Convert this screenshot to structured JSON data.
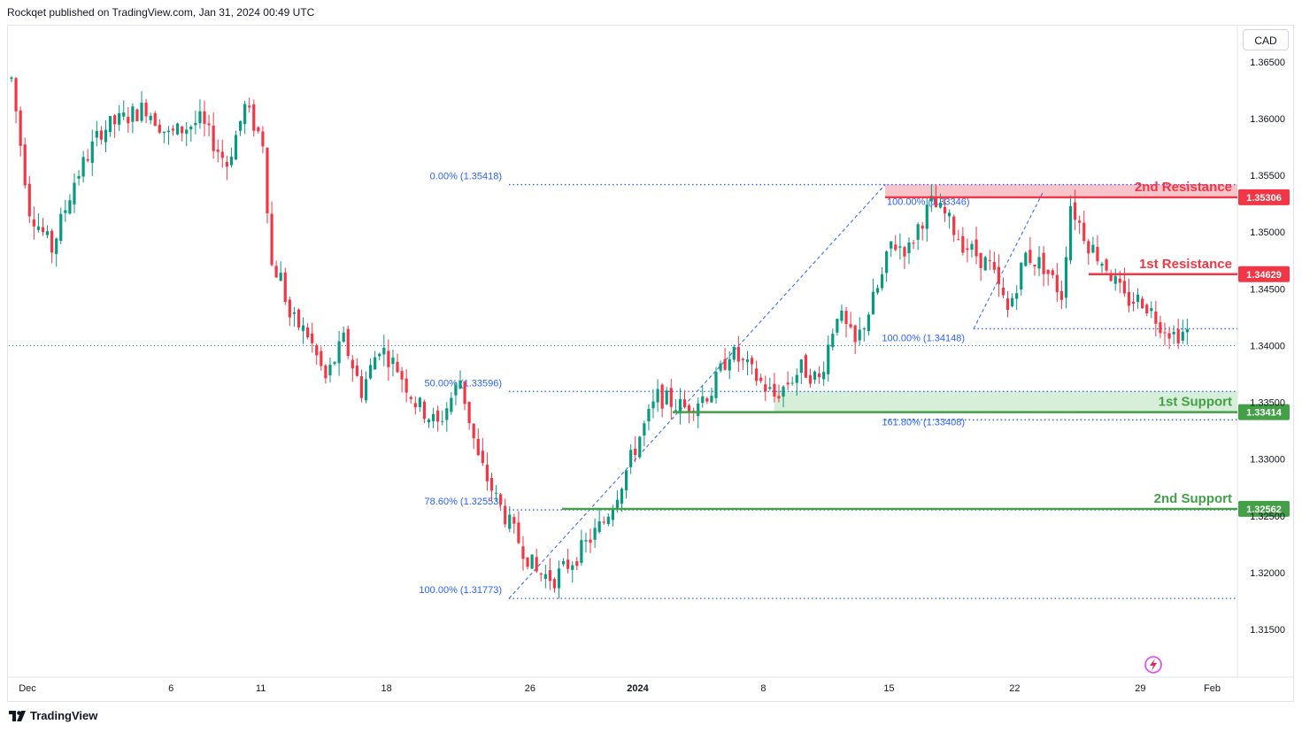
{
  "header": {
    "published": "Rockqet published on TradingView.com, Jan 31, 2024 00:49 UTC"
  },
  "currency": "CAD",
  "footer": {
    "brand": "TradingView"
  },
  "colors": {
    "up": "#089981",
    "down": "#f23645",
    "resistance": "#f23645",
    "support": "#43a047",
    "fib": "#2962ff",
    "zone_red": "#f7c5c9",
    "zone_green": "#d7eed8"
  },
  "chart_data": {
    "type": "candlestick",
    "symbol_currency": "CAD",
    "ylim": [
      1.3108,
      1.3681
    ],
    "y_ticks": [
      {
        "value": 1.365,
        "label": "1.36500"
      },
      {
        "value": 1.36,
        "label": "1.36000"
      },
      {
        "value": 1.355,
        "label": "1.35500"
      },
      {
        "value": 1.35,
        "label": "1.35000"
      },
      {
        "value": 1.345,
        "label": "1.34500"
      },
      {
        "value": 1.34,
        "label": "1.34000"
      },
      {
        "value": 1.335,
        "label": "1.33500"
      },
      {
        "value": 1.33,
        "label": "1.33000"
      },
      {
        "value": 1.325,
        "label": "1.32500"
      },
      {
        "value": 1.32,
        "label": "1.32000"
      },
      {
        "value": 1.315,
        "label": "1.31500"
      }
    ],
    "x_labels": [
      {
        "label": "Dec",
        "bar": 0,
        "bold": false
      },
      {
        "label": "6",
        "bar": 32,
        "bold": false
      },
      {
        "label": "11",
        "bar": 52,
        "bold": false
      },
      {
        "label": "18",
        "bar": 80,
        "bold": false
      },
      {
        "label": "26",
        "bar": 112,
        "bold": false
      },
      {
        "label": "2024",
        "bar": 136,
        "bold": true
      },
      {
        "label": "8",
        "bar": 164,
        "bold": false
      },
      {
        "label": "15",
        "bar": 192,
        "bold": false
      },
      {
        "label": "22",
        "bar": 220,
        "bold": false
      },
      {
        "label": "29",
        "bar": 248,
        "bold": false
      },
      {
        "label": "Feb",
        "bar": 264,
        "bold": false
      }
    ],
    "anchors": [
      [
        0,
        1.3635
      ],
      [
        4,
        1.352
      ],
      [
        9,
        1.3485
      ],
      [
        14,
        1.3545
      ],
      [
        20,
        1.359
      ],
      [
        25,
        1.36
      ],
      [
        30,
        1.361
      ],
      [
        35,
        1.3585
      ],
      [
        42,
        1.3598
      ],
      [
        48,
        1.356
      ],
      [
        52,
        1.361
      ],
      [
        56,
        1.358
      ],
      [
        58,
        1.347
      ],
      [
        60,
        1.346
      ],
      [
        62,
        1.3425
      ],
      [
        66,
        1.341
      ],
      [
        70,
        1.337
      ],
      [
        74,
        1.3405
      ],
      [
        78,
        1.336
      ],
      [
        82,
        1.34
      ],
      [
        86,
        1.338
      ],
      [
        90,
        1.335
      ],
      [
        95,
        1.333
      ],
      [
        100,
        1.337
      ],
      [
        104,
        1.33
      ],
      [
        108,
        1.3265
      ],
      [
        112,
        1.3235
      ],
      [
        117,
        1.32
      ],
      [
        121,
        1.3195
      ],
      [
        126,
        1.3215
      ],
      [
        132,
        1.3245
      ],
      [
        136,
        1.328
      ],
      [
        140,
        1.332
      ],
      [
        144,
        1.3355
      ],
      [
        150,
        1.3345
      ],
      [
        156,
        1.336
      ],
      [
        160,
        1.3395
      ],
      [
        164,
        1.338
      ],
      [
        170,
        1.3355
      ],
      [
        176,
        1.338
      ],
      [
        180,
        1.337
      ],
      [
        184,
        1.343
      ],
      [
        188,
        1.34
      ],
      [
        194,
        1.346
      ],
      [
        196,
        1.349
      ],
      [
        200,
        1.3485
      ],
      [
        202,
        1.3505
      ],
      [
        205,
        1.3525
      ],
      [
        208,
        1.3515
      ],
      [
        212,
        1.349
      ],
      [
        218,
        1.347
      ],
      [
        222,
        1.343
      ],
      [
        226,
        1.348
      ],
      [
        230,
        1.347
      ],
      [
        234,
        1.3445
      ],
      [
        236,
        1.3525
      ],
      [
        240,
        1.349
      ],
      [
        244,
        1.347
      ],
      [
        248,
        1.344
      ],
      [
        252,
        1.344
      ],
      [
        256,
        1.342
      ],
      [
        259,
        1.341
      ],
      [
        262,
        1.3412
      ]
    ],
    "current_price": 1.34,
    "annotations": [
      {
        "kind": "zone",
        "name": "2nd Resistance",
        "from": 1.3542,
        "to": 1.3531,
        "color": "red"
      },
      {
        "kind": "level",
        "name": "2nd Resistance",
        "value": 1.35306,
        "tag": "1.35306",
        "color": "red"
      },
      {
        "kind": "level",
        "name": "1st Resistance",
        "value": 1.34629,
        "tag": "1.34629",
        "color": "red"
      },
      {
        "kind": "zone",
        "name": "1st Support",
        "from": 1.336,
        "to": 1.3341,
        "color": "green"
      },
      {
        "kind": "level",
        "name": "1st Support",
        "value": 1.33414,
        "tag": "1.33414",
        "color": "green"
      },
      {
        "kind": "level",
        "name": "2nd Support",
        "value": 1.32562,
        "tag": "1.32562",
        "color": "green"
      }
    ],
    "fib_labels": [
      {
        "text": "0.00% (1.35418)",
        "value": 1.35418
      },
      {
        "text": "50.00% (1.33596)",
        "value": 1.33596
      },
      {
        "text": "78.60% (1.32553)",
        "value": 1.32553
      },
      {
        "text": "100.00% (1.31773)",
        "value": 1.31773
      },
      {
        "text": "100.00% (1.33346)",
        "value": 1.33346
      },
      {
        "text": "100.00% (1.34148)",
        "value": 1.34148
      },
      {
        "text": "161.80% (1.33408)",
        "value": 1.33408
      }
    ]
  }
}
